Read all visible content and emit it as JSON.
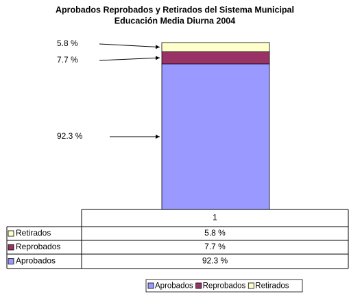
{
  "chart_data": {
    "type": "stacked-bar",
    "title": [
      "Aprobados Reprobados y Retirados del Sistema Municipal",
      "Educación Media Diurna 2004"
    ],
    "categories": [
      "1"
    ],
    "series": [
      {
        "name": "Aprobados",
        "color": "#9999ff",
        "values": [
          92.3
        ],
        "value_labels": [
          "92.3 %"
        ]
      },
      {
        "name": "Reprobados",
        "color": "#993366",
        "values": [
          7.7
        ],
        "value_labels": [
          "7.7 %"
        ]
      },
      {
        "name": "Retirados",
        "color": "#ffffcc",
        "values": [
          5.8
        ],
        "value_labels": [
          "5.8 %"
        ]
      }
    ],
    "legend": "bottom"
  }
}
